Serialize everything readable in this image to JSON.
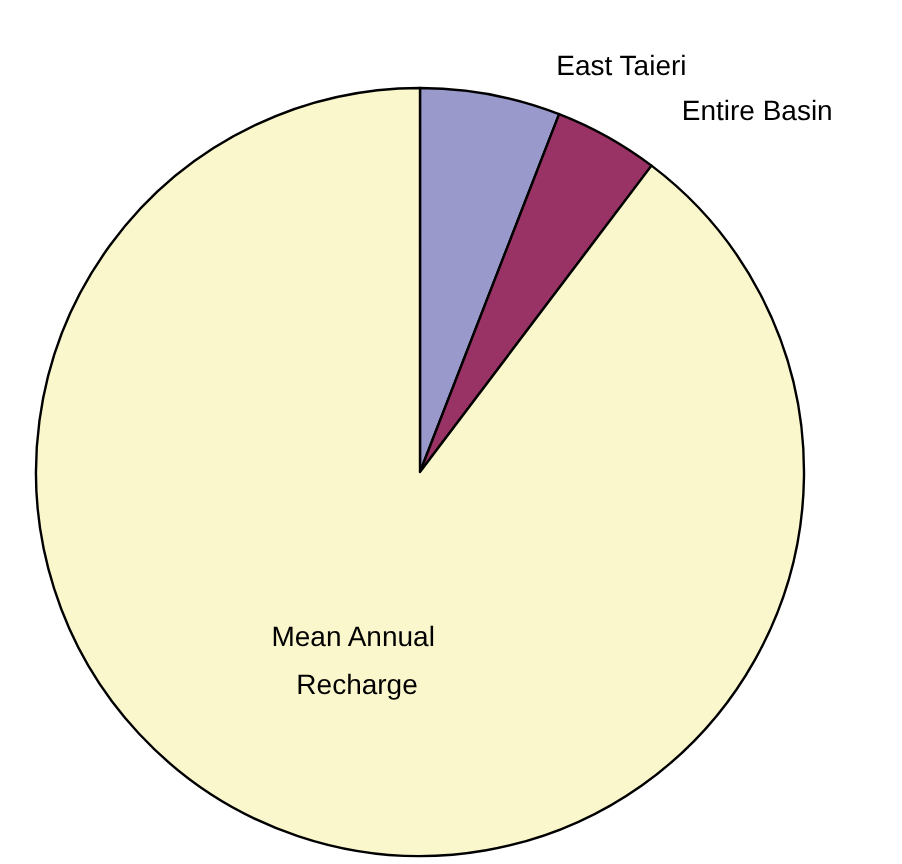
{
  "chart_data": {
    "type": "pie",
    "categories": [
      "East Taieri",
      "Entire Basin",
      "Mean Annual Recharge"
    ],
    "values": [
      5.9,
      4.4,
      89.7
    ],
    "colors": [
      "#9999cc",
      "#993366",
      "#fbf7cc"
    ],
    "legend": false
  }
}
